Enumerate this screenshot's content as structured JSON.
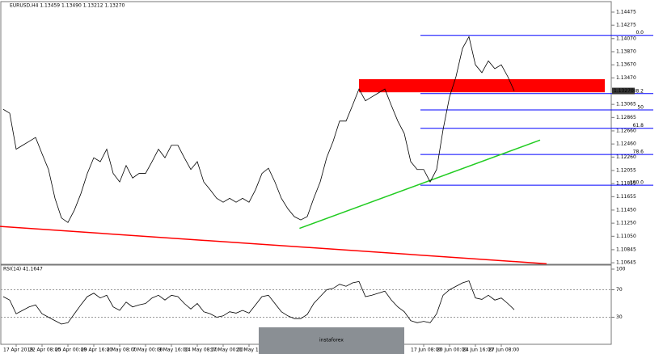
{
  "chart_data": [
    {
      "type": "line",
      "title": "EURUSD,H4  1.13459 1.13490 1.13212 1.13270",
      "color": "#000000",
      "categories": [
        null,
        null,
        "17 Apr 2019",
        null,
        null,
        null,
        "22 Apr 08:00",
        null,
        null,
        null,
        "25 Apr 00:00",
        null,
        null,
        null,
        "29 Apr 16:00",
        null,
        null,
        null,
        "2 May 08:00",
        null,
        null,
        null,
        "7 May 00:00",
        null,
        null,
        null,
        "9 May 16:00",
        null,
        null,
        null,
        "14 May 08:00",
        null,
        null,
        null,
        "17 May 00:00",
        null,
        null,
        null,
        "21 May 16:00",
        null,
        null,
        null,
        null,
        null,
        null,
        null,
        null,
        null,
        null,
        null,
        null,
        null,
        null,
        null,
        null,
        null,
        null,
        null,
        null,
        null,
        null,
        null,
        null,
        null,
        null,
        "17 Jun 08:00",
        null,
        null,
        null,
        "20 Jun 00:00",
        null,
        null,
        null,
        "24 Jun 16:00",
        null,
        null,
        null,
        "27 Jun 08:00",
        null,
        null
      ],
      "values": [
        1.1299,
        1.1293,
        1.1238,
        1.1244,
        1.125,
        1.1256,
        1.1231,
        1.1207,
        1.1163,
        1.1133,
        1.1126,
        1.1145,
        1.117,
        1.1201,
        1.1225,
        1.1219,
        1.1238,
        1.1201,
        1.1188,
        1.1213,
        1.1194,
        1.1201,
        1.1201,
        1.1219,
        1.1238,
        1.1225,
        1.1244,
        1.1244,
        1.1225,
        1.1207,
        1.1219,
        1.1188,
        1.1176,
        1.1163,
        1.1157,
        1.1163,
        1.1157,
        1.1163,
        1.1157,
        1.1176,
        1.1201,
        1.1209,
        1.1188,
        1.1163,
        1.1147,
        1.1135,
        1.113,
        1.1135,
        1.1163,
        1.1188,
        1.1225,
        1.125,
        1.1281,
        1.1281,
        1.1305,
        1.133,
        1.1312,
        1.1318,
        1.1324,
        1.133,
        1.1305,
        1.1281,
        1.1262,
        1.1219,
        1.1207,
        1.1207,
        1.1188,
        1.1207,
        1.1268,
        1.1318,
        1.1349,
        1.1392,
        1.141,
        1.1367,
        1.1355,
        1.1373,
        1.1361,
        1.1367,
        1.1349,
        1.1327
      ],
      "ylim": [
        1.10634,
        1.14623
      ],
      "yticks": [
        1.14475,
        1.14275,
        {
          "value": 1.1407,
          "label": "1.14070"
        },
        {
          "value": 1.1387,
          "label": "1.13870"
        },
        {
          "value": 1.1367,
          "label": "1.13670"
        },
        {
          "value": 1.1347,
          "label": "1.13470"
        },
        1.13065,
        1.12865,
        {
          "value": 1.1266,
          "label": "1.12660"
        },
        {
          "value": 1.1246,
          "label": "1.12460"
        },
        {
          "value": 1.1226,
          "label": "1.12260"
        },
        1.12055,
        1.11855,
        1.11655,
        {
          "value": 1.1145,
          "label": "1.11450"
        },
        {
          "value": 1.1125,
          "label": "1.11250"
        },
        {
          "value": 1.1105,
          "label": "1.11050"
        },
        1.10845,
        1.10645
      ],
      "current_price": {
        "value": 1.1327,
        "label": "1.13270"
      },
      "fibonacci": {
        "color": "#0000ff",
        "levels": [
          {
            "label": "0.0",
            "value": 1.1412
          },
          {
            "label": "38.2",
            "value": 1.1323
          },
          {
            "label": "50",
            "value": 1.1298
          },
          {
            "label": "61.8",
            "value": 1.127
          },
          {
            "label": "78.6",
            "value": 1.123
          },
          {
            "label": "100.0",
            "value": 1.1183
          }
        ]
      },
      "zone": {
        "from": 1.1325,
        "to": 1.1345,
        "x": [
          55,
          93
        ],
        "color": "#ff0000"
      },
      "trendlines": [
        {
          "color": "#ff0000",
          "x": [
            -0.5,
            84
          ],
          "values": [
            1.112,
            1.1063
          ]
        },
        {
          "color": "#22cc22",
          "x": [
            45.8,
            83
          ],
          "values": [
            1.1117,
            1.1252
          ]
        }
      ],
      "watermark": "instaforex"
    },
    {
      "type": "line",
      "title": "RSI(14) 41.1647",
      "color": "#000000",
      "values": [
        60,
        55,
        35,
        40,
        45,
        48,
        35,
        30,
        25,
        20,
        22,
        35,
        48,
        60,
        65,
        58,
        62,
        45,
        40,
        52,
        45,
        48,
        50,
        58,
        62,
        55,
        62,
        60,
        50,
        42,
        50,
        38,
        35,
        30,
        32,
        38,
        36,
        40,
        36,
        48,
        60,
        62,
        50,
        38,
        32,
        28,
        28,
        34,
        50,
        60,
        70,
        72,
        78,
        75,
        80,
        82,
        60,
        62,
        65,
        68,
        55,
        45,
        38,
        25,
        22,
        24,
        22,
        35,
        62,
        70,
        75,
        80,
        83,
        58,
        56,
        62,
        55,
        58,
        50,
        41
      ],
      "ylim": [
        0,
        100
      ],
      "yticks": [
        100,
        70,
        30
      ]
    }
  ]
}
